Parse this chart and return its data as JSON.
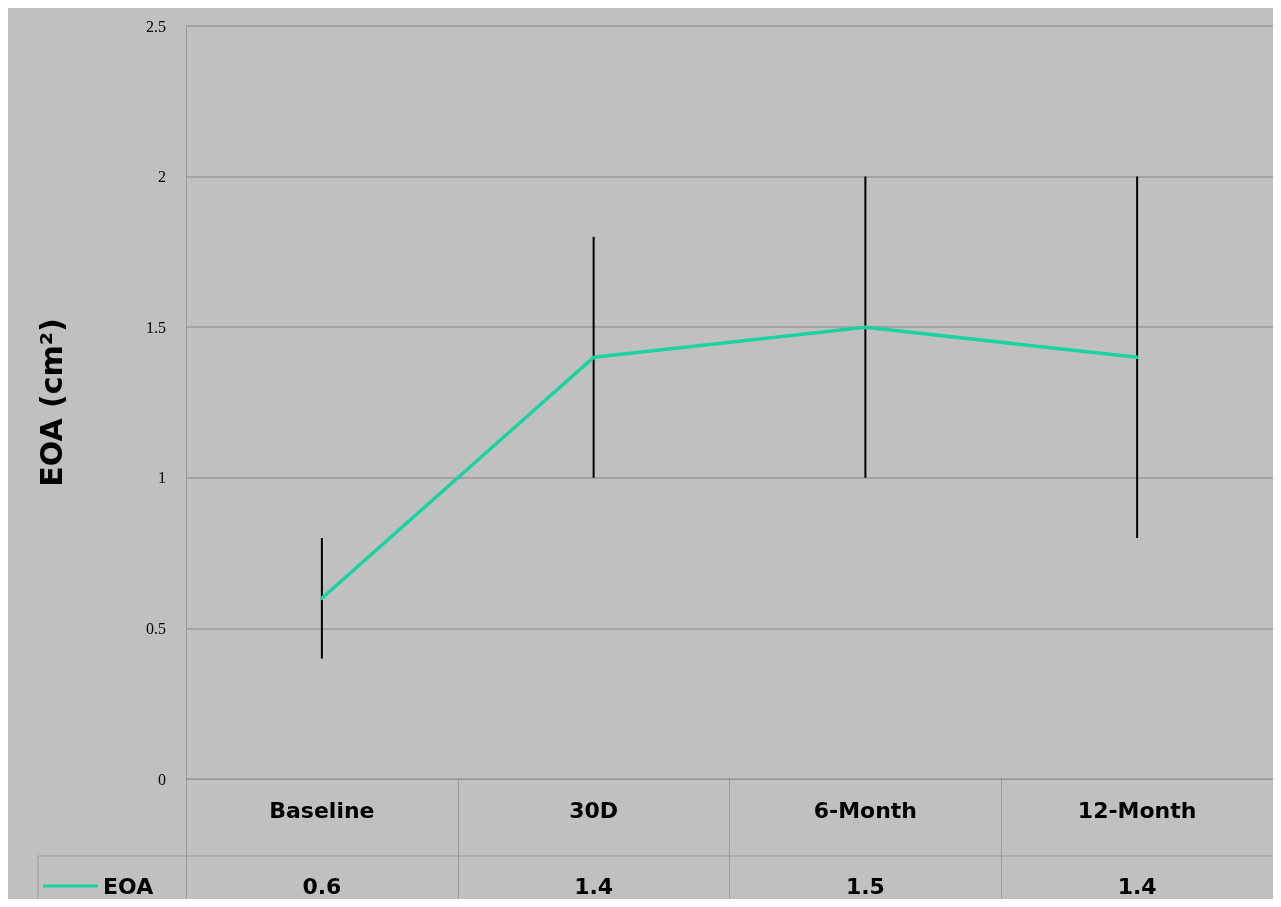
{
  "chart_data": {
    "type": "line",
    "ylabel": "EOA (cm²)",
    "categories": [
      "Baseline",
      "30D",
      "6-Month",
      "12-Month"
    ],
    "series": [
      {
        "name": "EOA",
        "color": "#1ad3a0",
        "values": [
          0.6,
          1.4,
          1.5,
          1.4
        ],
        "errors": [
          [
            0.4,
            0.8
          ],
          [
            1.0,
            1.8
          ],
          [
            1.0,
            2.0
          ],
          [
            0.8,
            2.0
          ]
        ]
      }
    ],
    "ylim": [
      0,
      2.5
    ],
    "yticks": [
      0,
      0.5,
      1,
      1.5,
      2,
      2.5
    ],
    "grid": "y",
    "legend": "bottom left",
    "marker": "none",
    "line_style": "solid",
    "data_labels": true
  }
}
